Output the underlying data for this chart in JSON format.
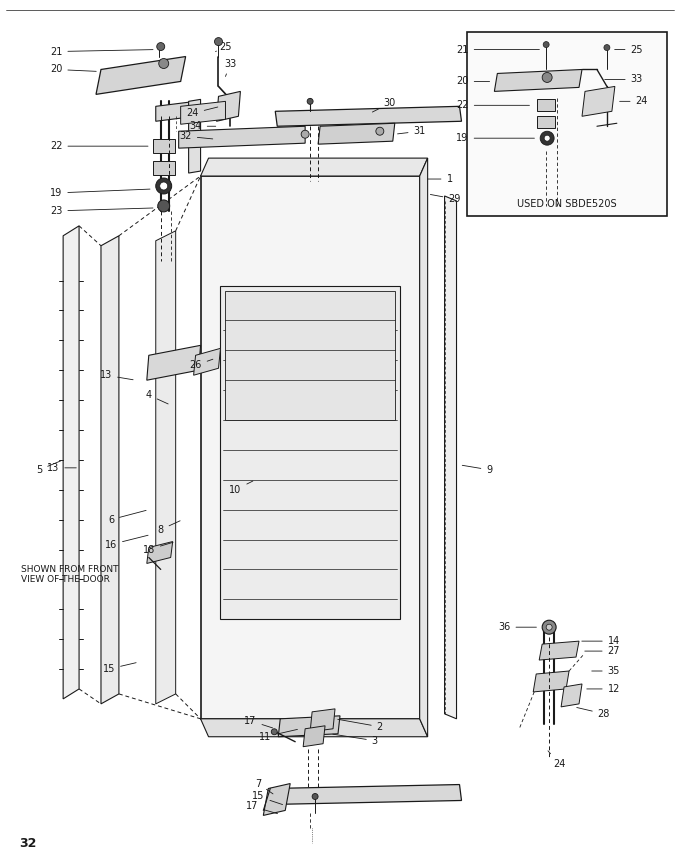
{
  "bg_color": "#ffffff",
  "line_color": "#1a1a1a",
  "page_number": "32",
  "inset_label": "USED ON SBDE520S",
  "note_text": "SHOWN FROM FRONT\nVIEW OF THE DOOR"
}
